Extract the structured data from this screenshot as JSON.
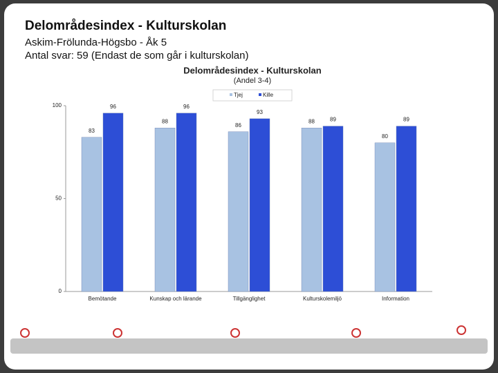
{
  "header": {
    "title": "Delområdesindex - Kulturskolan",
    "lines": [
      "Askim-Frölunda-Högsbo - Åk 5",
      "Antal svar: 59 (Endast de som går i kulturskolan)"
    ]
  },
  "chart_data": {
    "type": "bar",
    "title": "Delområdesindex  - Kulturskolan",
    "subtitle": "(Andel 3-4)",
    "categories": [
      "Bemötande",
      "Kunskap och lärande",
      "Tillgänglighet",
      "Kulturskolemiljö",
      "Information"
    ],
    "series": [
      {
        "name": "Tjej",
        "color": "#a8c2e2",
        "values": [
          83,
          88,
          86,
          88,
          80
        ]
      },
      {
        "name": "Kille",
        "color": "#2d4ed6",
        "values": [
          96,
          96,
          93,
          89,
          89
        ]
      }
    ],
    "ylim": [
      0,
      100
    ],
    "yticks": [
      0,
      50,
      100
    ],
    "grid": false,
    "legend": "top"
  }
}
